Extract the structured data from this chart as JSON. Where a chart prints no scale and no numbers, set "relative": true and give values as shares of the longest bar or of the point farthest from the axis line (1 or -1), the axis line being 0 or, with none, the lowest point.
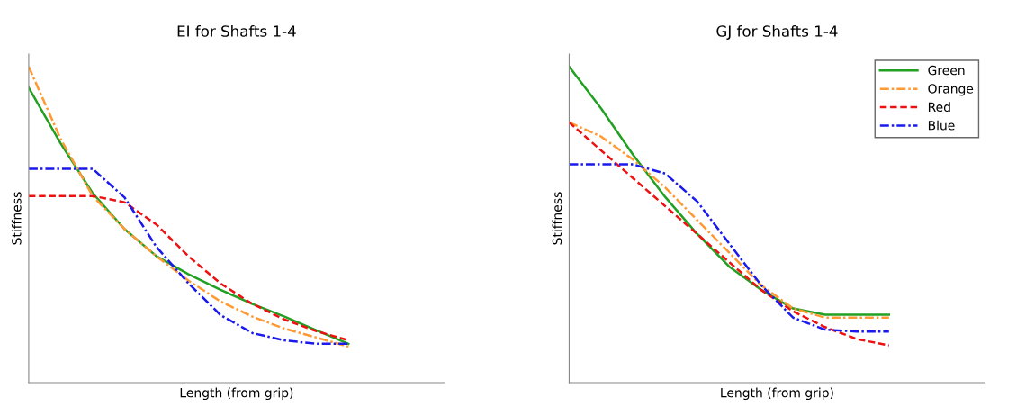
{
  "chart_data": [
    {
      "type": "line",
      "title": "EI for Shafts 1-4",
      "xlabel": "Length (from grip)",
      "ylabel": "Stiffness",
      "relative": true,
      "legend": false,
      "tick_labels": false,
      "categories": [
        null,
        null,
        null,
        null,
        null,
        null,
        null,
        null,
        null,
        null,
        null,
        null,
        null,
        null
      ],
      "series": [
        {
          "color": "#22a022",
          "line_style": "solid",
          "values": [
            0.934,
            0.757,
            0.6,
            0.486,
            0.4,
            0.343,
            0.294,
            0.249,
            0.209,
            0.166,
            0.123,
            null,
            null,
            null
          ]
        },
        {
          "color": "#ff9933",
          "line_style": "dashdot",
          "values": [
            1,
            0.771,
            0.591,
            0.486,
            0.4,
            0.323,
            0.257,
            0.209,
            0.171,
            0.143,
            0.114,
            null,
            null,
            null
          ]
        },
        {
          "color": "#ee1111",
          "line_style": "dashed",
          "values": [
            0.591,
            0.591,
            0.591,
            0.571,
            0.5,
            0.4,
            0.314,
            0.249,
            0.2,
            0.163,
            0.134,
            null,
            null,
            null
          ]
        },
        {
          "color": "#1a1aee",
          "line_style": "dashdot",
          "values": [
            0.677,
            0.677,
            0.677,
            0.586,
            0.429,
            0.314,
            0.214,
            0.157,
            0.134,
            0.123,
            0.123,
            null,
            null,
            null
          ]
        }
      ]
    },
    {
      "type": "line",
      "title": "GJ for Shafts 1-4",
      "xlabel": "Length (from grip)",
      "ylabel": "Stiffness",
      "relative": true,
      "legend": "top right",
      "tick_labels": false,
      "categories": [
        null,
        null,
        null,
        null,
        null,
        null,
        null,
        null,
        null,
        null,
        null,
        null,
        null,
        null
      ],
      "series": [
        {
          "name": "Green",
          "color": "#22a022",
          "line_style": "solid",
          "values": [
            1,
            0.868,
            0.721,
            0.588,
            0.471,
            0.368,
            0.294,
            0.235,
            0.215,
            0.215,
            0.215,
            null,
            null,
            null
          ]
        },
        {
          "name": "Orange",
          "color": "#ff9933",
          "line_style": "dashdot",
          "values": [
            0.824,
            0.779,
            0.706,
            0.618,
            0.515,
            0.412,
            0.309,
            0.235,
            0.206,
            0.206,
            0.206,
            null,
            null,
            null
          ]
        },
        {
          "name": "Red",
          "color": "#ee1111",
          "line_style": "dashed",
          "values": [
            0.824,
            0.735,
            0.647,
            0.559,
            0.471,
            0.382,
            0.294,
            0.226,
            0.176,
            0.138,
            0.118,
            null,
            null,
            null
          ]
        },
        {
          "name": "Blue",
          "color": "#1a1aee",
          "line_style": "dashdot",
          "values": [
            0.691,
            0.691,
            0.691,
            0.662,
            0.574,
            0.441,
            0.309,
            0.206,
            0.168,
            0.162,
            0.162,
            null,
            null,
            null
          ]
        }
      ]
    }
  ]
}
